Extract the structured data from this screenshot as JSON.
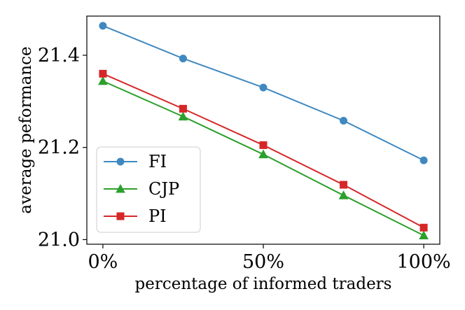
{
  "chart_data": {
    "type": "line",
    "title": "",
    "xlabel": "percentage of informed traders",
    "ylabel": "average peformance",
    "x": [
      0,
      25,
      50,
      75,
      100
    ],
    "xlim": [
      -5,
      105
    ],
    "ylim": [
      20.99,
      21.485
    ],
    "xticks": [
      {
        "value": 0,
        "label": "0%"
      },
      {
        "value": 50,
        "label": "50%"
      },
      {
        "value": 100,
        "label": "100%"
      }
    ],
    "yticks": [
      {
        "value": 21.0,
        "label": "21.0"
      },
      {
        "value": 21.2,
        "label": "21.2"
      },
      {
        "value": 21.4,
        "label": "21.4"
      }
    ],
    "grid": false,
    "legend_position": "bottom-left",
    "series": [
      {
        "name": "FI",
        "color": "#3f88c0",
        "marker": "circle",
        "values": [
          21.464,
          21.393,
          21.33,
          21.258,
          21.172
        ]
      },
      {
        "name": "CJP",
        "color": "#2ca02c",
        "marker": "triangle",
        "values": [
          21.344,
          21.267,
          21.185,
          21.096,
          21.009
        ]
      },
      {
        "name": "PI",
        "color": "#d62728",
        "marker": "square",
        "values": [
          21.36,
          21.284,
          21.205,
          21.119,
          21.026
        ]
      }
    ]
  }
}
